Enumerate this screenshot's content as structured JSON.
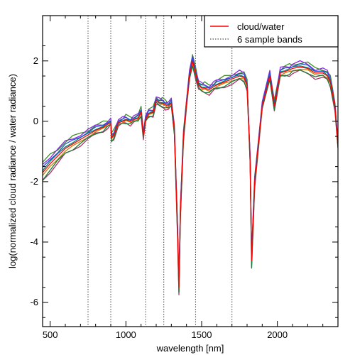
{
  "chart_data": {
    "type": "line",
    "title": "",
    "xlabel": "wavelength [nm]",
    "ylabel": "log(normalized cloud radiance / water radiance)",
    "xlim": [
      450,
      2400
    ],
    "ylim": [
      -6.8,
      3.5
    ],
    "x_ticks": [
      500,
      1000,
      1500,
      2000
    ],
    "x_tick_labels": [
      "500",
      "1000",
      "1500",
      "2000"
    ],
    "y_ticks": [
      -6,
      -4,
      -2,
      0,
      2
    ],
    "y_tick_labels": [
      "-6",
      "-4",
      "-2",
      "0",
      "2"
    ],
    "grid": false,
    "legend": {
      "position": "top-right",
      "entries": [
        {
          "label": "cloud/water",
          "style": "solid",
          "color": "#ff0000"
        },
        {
          "label": "6 sample bands",
          "style": "dotted",
          "color": "#555555"
        }
      ]
    },
    "sample_bands_nm": [
      750,
      900,
      1130,
      1250,
      1460,
      1700
    ],
    "base_curve": {
      "x": [
        450,
        500,
        550,
        600,
        650,
        700,
        750,
        800,
        850,
        880,
        900,
        905,
        920,
        950,
        980,
        1000,
        1030,
        1050,
        1080,
        1100,
        1115,
        1130,
        1150,
        1180,
        1200,
        1220,
        1240,
        1260,
        1280,
        1300,
        1320,
        1340,
        1350,
        1360,
        1380,
        1400,
        1420,
        1440,
        1460,
        1480,
        1500,
        1520,
        1550,
        1580,
        1600,
        1650,
        1700,
        1750,
        1780,
        1800,
        1810,
        1820,
        1830,
        1850,
        1900,
        1950,
        1980,
        2000,
        2020,
        2050,
        2080,
        2100,
        2150,
        2200,
        2250,
        2300,
        2330,
        2350,
        2380,
        2400
      ],
      "y": [
        -1.7,
        -1.4,
        -1.15,
        -0.9,
        -0.75,
        -0.6,
        -0.45,
        -0.3,
        -0.2,
        -0.1,
        -0.05,
        -0.55,
        -0.45,
        -0.05,
        0.0,
        0.05,
        0.0,
        0.05,
        0.1,
        0.3,
        -0.45,
        0.05,
        0.25,
        0.3,
        0.7,
        0.6,
        0.6,
        0.55,
        0.5,
        0.6,
        -0.3,
        -3.5,
        -5.5,
        -3.0,
        -0.5,
        0.6,
        1.5,
        2.0,
        1.6,
        1.2,
        1.1,
        1.1,
        1.05,
        1.15,
        1.2,
        1.3,
        1.4,
        1.5,
        1.45,
        1.2,
        0.0,
        -1.3,
        -4.6,
        -2.0,
        0.5,
        1.5,
        0.5,
        1.1,
        1.6,
        1.65,
        1.7,
        1.75,
        1.8,
        1.75,
        1.6,
        1.6,
        1.5,
        1.3,
        0.5,
        -0.8
      ]
    },
    "series": [
      {
        "color": "#ff0000",
        "offset": 0.0,
        "spread": 0.0
      },
      {
        "color": "#1a7a3a",
        "offset": -0.08,
        "spread": -0.2
      },
      {
        "color": "#2255cc",
        "offset": 0.06,
        "spread": 0.12
      },
      {
        "color": "#8a2be2",
        "offset": 0.1,
        "spread": 0.22
      },
      {
        "color": "#b8860b",
        "offset": -0.04,
        "spread": -0.12
      },
      {
        "color": "#008080",
        "offset": 0.03,
        "spread": 0.06
      },
      {
        "color": "#b0306a",
        "offset": -0.1,
        "spread": -0.28
      },
      {
        "color": "#3c8c28",
        "offset": 0.12,
        "spread": 0.16
      }
    ]
  }
}
